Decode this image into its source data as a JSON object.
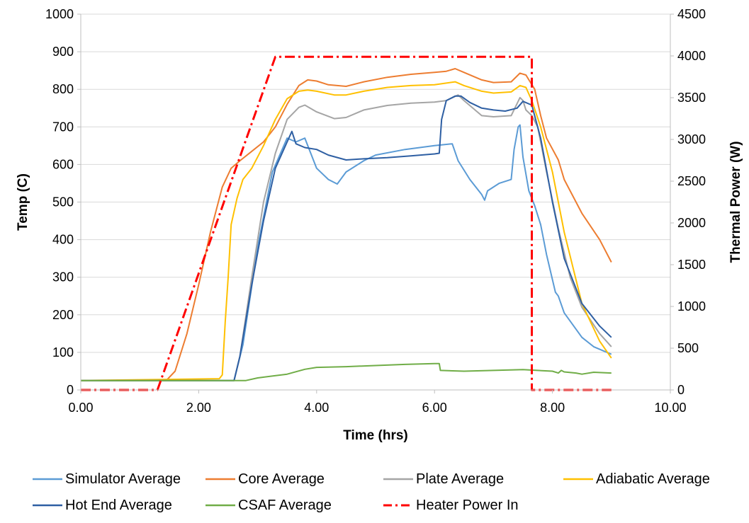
{
  "chart_data": {
    "type": "line",
    "xlabel": "Time (hrs)",
    "ylabel": "Temp (C)",
    "y2label": "Thermal Power (W)",
    "xlim": [
      0,
      10
    ],
    "ylim": [
      0,
      1000
    ],
    "y2lim": [
      0,
      4500
    ],
    "x_ticks": [
      "0.00",
      "2.00",
      "4.00",
      "6.00",
      "8.00",
      "10.00"
    ],
    "y_ticks": [
      "0",
      "100",
      "200",
      "300",
      "400",
      "500",
      "600",
      "700",
      "800",
      "900",
      "1000"
    ],
    "y2_ticks": [
      "0",
      "500",
      "1000",
      "1500",
      "2000",
      "2500",
      "3000",
      "3500",
      "4000",
      "4500"
    ],
    "grid": "horizontal",
    "legend_position": "bottom",
    "series": [
      {
        "name": "Simulator Average",
        "color": "#5b9bd5",
        "axis": "left",
        "dash": "solid",
        "points": [
          [
            0,
            25
          ],
          [
            2.6,
            25
          ],
          [
            2.75,
            120
          ],
          [
            3.0,
            380
          ],
          [
            3.25,
            580
          ],
          [
            3.5,
            670
          ],
          [
            3.65,
            660
          ],
          [
            3.8,
            670
          ],
          [
            3.9,
            630
          ],
          [
            4.0,
            590
          ],
          [
            4.2,
            560
          ],
          [
            4.35,
            548
          ],
          [
            4.5,
            580
          ],
          [
            4.8,
            610
          ],
          [
            5.0,
            625
          ],
          [
            5.5,
            640
          ],
          [
            6.0,
            650
          ],
          [
            6.3,
            655
          ],
          [
            6.4,
            610
          ],
          [
            6.6,
            560
          ],
          [
            6.8,
            520
          ],
          [
            6.85,
            505
          ],
          [
            6.9,
            530
          ],
          [
            7.1,
            550
          ],
          [
            7.3,
            560
          ],
          [
            7.35,
            640
          ],
          [
            7.42,
            700
          ],
          [
            7.45,
            705
          ],
          [
            7.5,
            620
          ],
          [
            7.6,
            530
          ],
          [
            7.7,
            490
          ],
          [
            7.8,
            440
          ],
          [
            7.9,
            360
          ],
          [
            8.05,
            260
          ],
          [
            8.1,
            250
          ],
          [
            8.2,
            205
          ],
          [
            8.5,
            140
          ],
          [
            8.7,
            115
          ],
          [
            9.0,
            95
          ]
        ]
      },
      {
        "name": "Core Average",
        "color": "#ed7d31",
        "axis": "left",
        "dash": "solid",
        "points": [
          [
            0,
            25
          ],
          [
            1.45,
            25
          ],
          [
            1.6,
            50
          ],
          [
            1.8,
            150
          ],
          [
            2.0,
            280
          ],
          [
            2.2,
            420
          ],
          [
            2.4,
            540
          ],
          [
            2.55,
            590
          ],
          [
            2.7,
            610
          ],
          [
            2.9,
            635
          ],
          [
            3.1,
            660
          ],
          [
            3.3,
            700
          ],
          [
            3.5,
            760
          ],
          [
            3.7,
            810
          ],
          [
            3.85,
            825
          ],
          [
            4.0,
            822
          ],
          [
            4.2,
            812
          ],
          [
            4.5,
            808
          ],
          [
            4.8,
            820
          ],
          [
            5.2,
            832
          ],
          [
            5.6,
            840
          ],
          [
            6.0,
            845
          ],
          [
            6.2,
            848
          ],
          [
            6.35,
            855
          ],
          [
            6.5,
            845
          ],
          [
            6.8,
            825
          ],
          [
            7.0,
            818
          ],
          [
            7.3,
            820
          ],
          [
            7.45,
            843
          ],
          [
            7.55,
            838
          ],
          [
            7.7,
            800
          ],
          [
            7.8,
            730
          ],
          [
            7.9,
            670
          ],
          [
            8.1,
            612
          ],
          [
            8.2,
            560
          ],
          [
            8.5,
            470
          ],
          [
            8.8,
            400
          ],
          [
            9.0,
            340
          ]
        ]
      },
      {
        "name": "Plate Average",
        "color": "#a5a5a5",
        "axis": "left",
        "dash": "solid",
        "points": [
          [
            0,
            25
          ],
          [
            2.6,
            25
          ],
          [
            2.7,
            90
          ],
          [
            2.9,
            300
          ],
          [
            3.1,
            500
          ],
          [
            3.3,
            630
          ],
          [
            3.5,
            720
          ],
          [
            3.7,
            752
          ],
          [
            3.8,
            758
          ],
          [
            4.0,
            740
          ],
          [
            4.3,
            722
          ],
          [
            4.5,
            725
          ],
          [
            4.8,
            745
          ],
          [
            5.2,
            757
          ],
          [
            5.6,
            763
          ],
          [
            6.0,
            766
          ],
          [
            6.2,
            770
          ],
          [
            6.4,
            785
          ],
          [
            6.5,
            770
          ],
          [
            6.8,
            730
          ],
          [
            7.0,
            727
          ],
          [
            7.3,
            730
          ],
          [
            7.45,
            778
          ],
          [
            7.5,
            770
          ],
          [
            7.55,
            745
          ],
          [
            7.65,
            730
          ],
          [
            7.75,
            700
          ],
          [
            7.9,
            580
          ],
          [
            8.1,
            430
          ],
          [
            8.3,
            300
          ],
          [
            8.5,
            220
          ],
          [
            8.8,
            150
          ],
          [
            9.0,
            115
          ]
        ]
      },
      {
        "name": "Adiabatic Average",
        "color": "#ffc000",
        "axis": "left",
        "dash": "solid",
        "points": [
          [
            0,
            25
          ],
          [
            2.35,
            30
          ],
          [
            2.4,
            40
          ],
          [
            2.45,
            180
          ],
          [
            2.5,
            300
          ],
          [
            2.55,
            440
          ],
          [
            2.65,
            510
          ],
          [
            2.75,
            560
          ],
          [
            2.9,
            590
          ],
          [
            3.1,
            650
          ],
          [
            3.3,
            720
          ],
          [
            3.5,
            775
          ],
          [
            3.7,
            795
          ],
          [
            3.85,
            798
          ],
          [
            4.0,
            795
          ],
          [
            4.3,
            785
          ],
          [
            4.5,
            785
          ],
          [
            4.8,
            795
          ],
          [
            5.2,
            805
          ],
          [
            5.6,
            810
          ],
          [
            6.0,
            812
          ],
          [
            6.35,
            820
          ],
          [
            6.5,
            810
          ],
          [
            6.8,
            795
          ],
          [
            7.0,
            790
          ],
          [
            7.3,
            793
          ],
          [
            7.45,
            810
          ],
          [
            7.55,
            805
          ],
          [
            7.65,
            770
          ],
          [
            7.8,
            700
          ],
          [
            8.0,
            580
          ],
          [
            8.2,
            420
          ],
          [
            8.5,
            230
          ],
          [
            8.8,
            130
          ],
          [
            9.0,
            85
          ]
        ]
      },
      {
        "name": "Hot End Average",
        "color": "#2e5fa3",
        "axis": "left",
        "dash": "solid",
        "points": [
          [
            0,
            25
          ],
          [
            2.6,
            25
          ],
          [
            2.7,
            90
          ],
          [
            2.9,
            280
          ],
          [
            3.1,
            450
          ],
          [
            3.3,
            590
          ],
          [
            3.5,
            660
          ],
          [
            3.58,
            688
          ],
          [
            3.65,
            655
          ],
          [
            3.8,
            645
          ],
          [
            4.0,
            640
          ],
          [
            4.2,
            625
          ],
          [
            4.5,
            612
          ],
          [
            4.8,
            615
          ],
          [
            5.2,
            618
          ],
          [
            5.6,
            623
          ],
          [
            6.0,
            628
          ],
          [
            6.08,
            630
          ],
          [
            6.12,
            720
          ],
          [
            6.2,
            770
          ],
          [
            6.35,
            782
          ],
          [
            6.45,
            782
          ],
          [
            6.6,
            765
          ],
          [
            6.8,
            750
          ],
          [
            7.0,
            745
          ],
          [
            7.2,
            742
          ],
          [
            7.4,
            750
          ],
          [
            7.5,
            768
          ],
          [
            7.65,
            758
          ],
          [
            7.8,
            670
          ],
          [
            8.0,
            500
          ],
          [
            8.2,
            350
          ],
          [
            8.5,
            230
          ],
          [
            8.8,
            170
          ],
          [
            9.0,
            140
          ]
        ]
      },
      {
        "name": "CSAF Average",
        "color": "#70ad47",
        "axis": "left",
        "dash": "solid",
        "points": [
          [
            0,
            25
          ],
          [
            2.8,
            25
          ],
          [
            3.0,
            32
          ],
          [
            3.5,
            42
          ],
          [
            3.8,
            55
          ],
          [
            4.0,
            60
          ],
          [
            4.5,
            62
          ],
          [
            5.0,
            65
          ],
          [
            5.5,
            68
          ],
          [
            6.0,
            70
          ],
          [
            6.08,
            70
          ],
          [
            6.1,
            52
          ],
          [
            6.5,
            50
          ],
          [
            7.0,
            52
          ],
          [
            7.5,
            54
          ],
          [
            8.0,
            50
          ],
          [
            8.1,
            45
          ],
          [
            8.15,
            52
          ],
          [
            8.2,
            48
          ],
          [
            8.4,
            45
          ],
          [
            8.5,
            42
          ],
          [
            8.7,
            47
          ],
          [
            9.0,
            45
          ]
        ]
      },
      {
        "name": "Heater Power In",
        "color": "#ff0000",
        "axis": "right",
        "dash": "dashdot",
        "points": [
          [
            0,
            0
          ],
          [
            1.3,
            0
          ],
          [
            3.3,
            3990
          ],
          [
            7.65,
            3990
          ],
          [
            7.65,
            0
          ],
          [
            9.0,
            0
          ]
        ]
      }
    ]
  }
}
